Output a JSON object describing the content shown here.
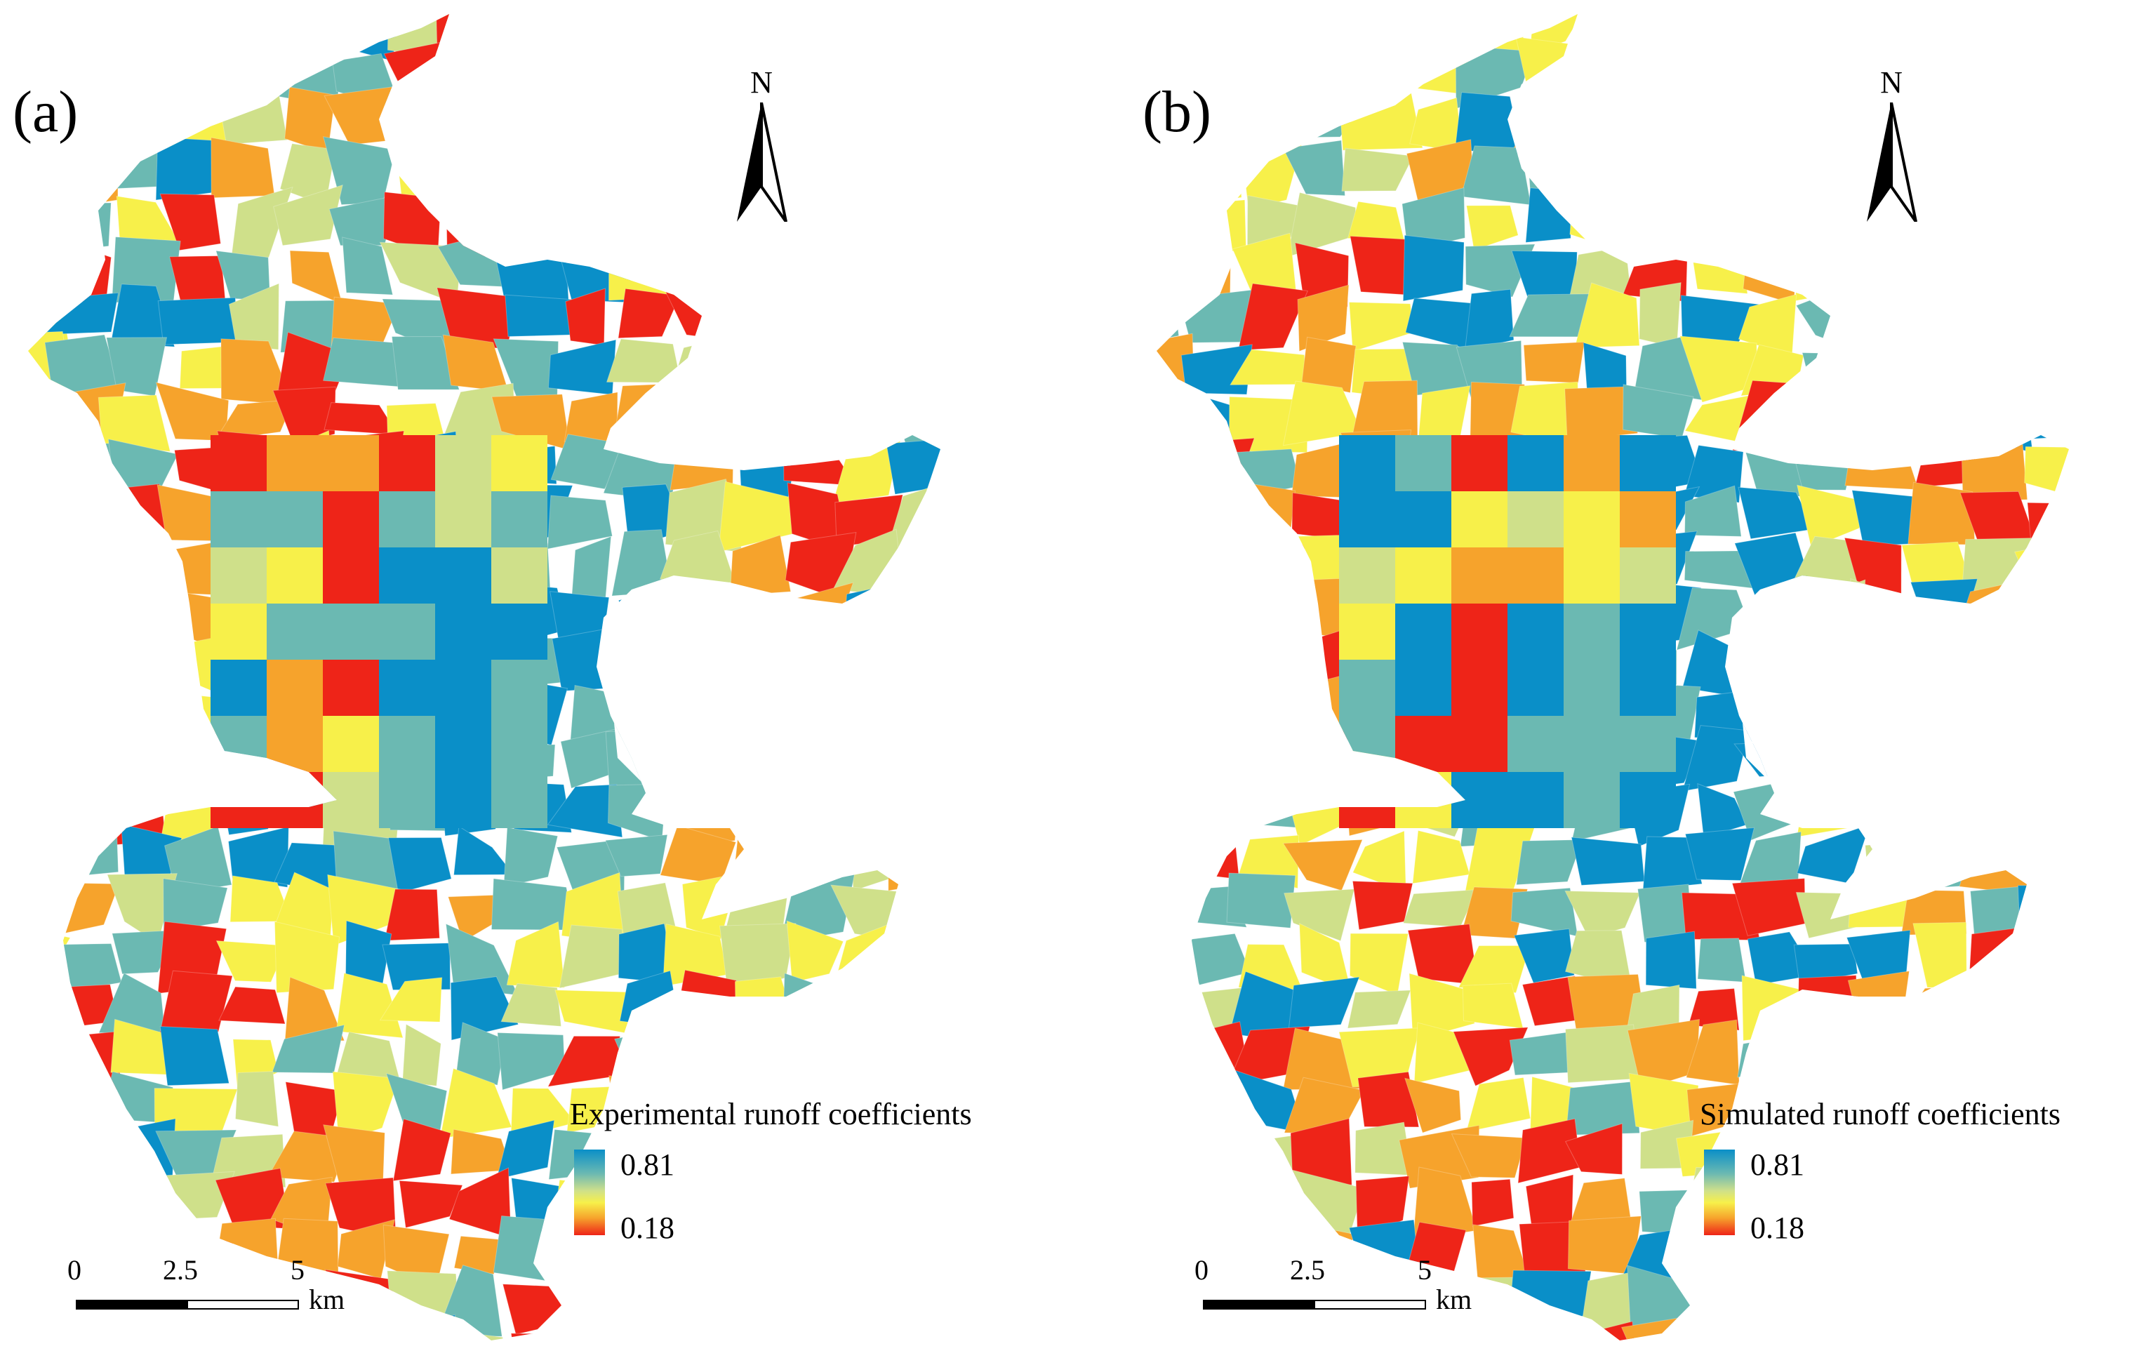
{
  "panels": [
    {
      "label": "(a)",
      "legend_title": "Experimental runoff coefficients",
      "legend_max": "0.81",
      "legend_min": "0.18",
      "north": "N",
      "scale": {
        "t0": "0",
        "t1": "2.5",
        "t2": "5",
        "unit": "km"
      }
    },
    {
      "label": "(b)",
      "legend_title": "Simulated runoff coefficients",
      "legend_max": "0.81",
      "legend_min": "0.18",
      "north": "N",
      "scale": {
        "t0": "0",
        "t1": "2.5",
        "t2": "5",
        "unit": "km"
      }
    }
  ],
  "colors": {
    "high": "#0a8fc8",
    "mid_high": "#6bb9b2",
    "mid": "#cfe08a",
    "mid_low": "#f7f04a",
    "low_mid": "#f6a32c",
    "low": "#ee2418"
  }
}
